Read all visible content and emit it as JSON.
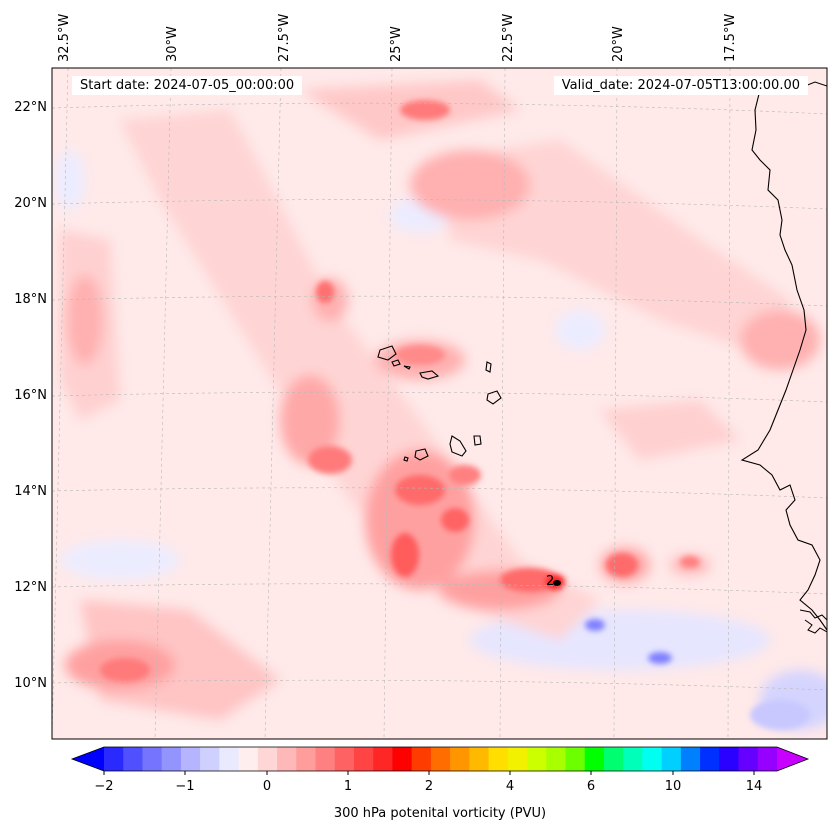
{
  "header": {
    "start_date": "Start date: 2024-07-05_00:00:00",
    "valid_date": "Valid_date: 2024-07-05T13:00:00.00"
  },
  "map": {
    "lon_labels": [
      "32.5°W",
      "30°W",
      "27.5°W",
      "25°W",
      "22.5°W",
      "20°W",
      "17.5°W"
    ],
    "lat_labels": [
      "22°N",
      "20°N",
      "18°N",
      "16°N",
      "14°N",
      "12°N",
      "10°N"
    ],
    "feature_annotation": "2"
  },
  "colorbar": {
    "label": "300 hPa potenital vorticity (PVU)",
    "tick_labels": [
      "−2",
      "−1",
      "0",
      "1",
      "2",
      "4",
      "6",
      "10",
      "14"
    ],
    "colors": [
      "#0000ff",
      "#2a2aff",
      "#5050ff",
      "#7474ff",
      "#9494ff",
      "#b4b4ff",
      "#d0d0ff",
      "#eaeaff",
      "#ffeeee",
      "#ffd6d6",
      "#ffb8b8",
      "#ff9c9c",
      "#ff8080",
      "#ff6262",
      "#ff4444",
      "#ff2626",
      "#ff0000",
      "#ff3c00",
      "#ff6c00",
      "#ff9600",
      "#ffba00",
      "#ffde00",
      "#f2f200",
      "#ccff00",
      "#a8ff00",
      "#6cff00",
      "#00ff00",
      "#00ff70",
      "#00ffb8",
      "#00fff0",
      "#00d0ff",
      "#0080ff",
      "#0030ff",
      "#2a00ff",
      "#6600ff",
      "#9600ff",
      "#c800ff"
    ]
  }
}
